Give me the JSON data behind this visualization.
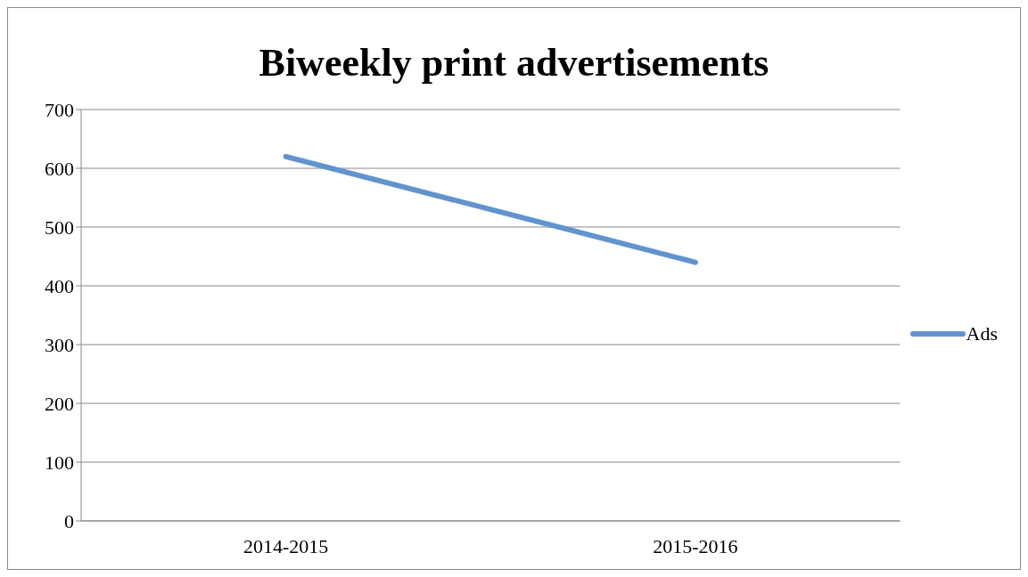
{
  "chart_data": {
    "type": "line",
    "title": "Biweekly print advertisements",
    "categories": [
      "2014-2015",
      "2015-2016"
    ],
    "series": [
      {
        "name": "Ads",
        "color": "#6194ce",
        "values": [
          620,
          440
        ]
      }
    ],
    "ylim": [
      0,
      700
    ],
    "yticks": [
      0,
      100,
      200,
      300,
      400,
      500,
      600,
      700
    ],
    "grid": "y",
    "legend": "right",
    "marker": "none",
    "line_style": "solid"
  }
}
